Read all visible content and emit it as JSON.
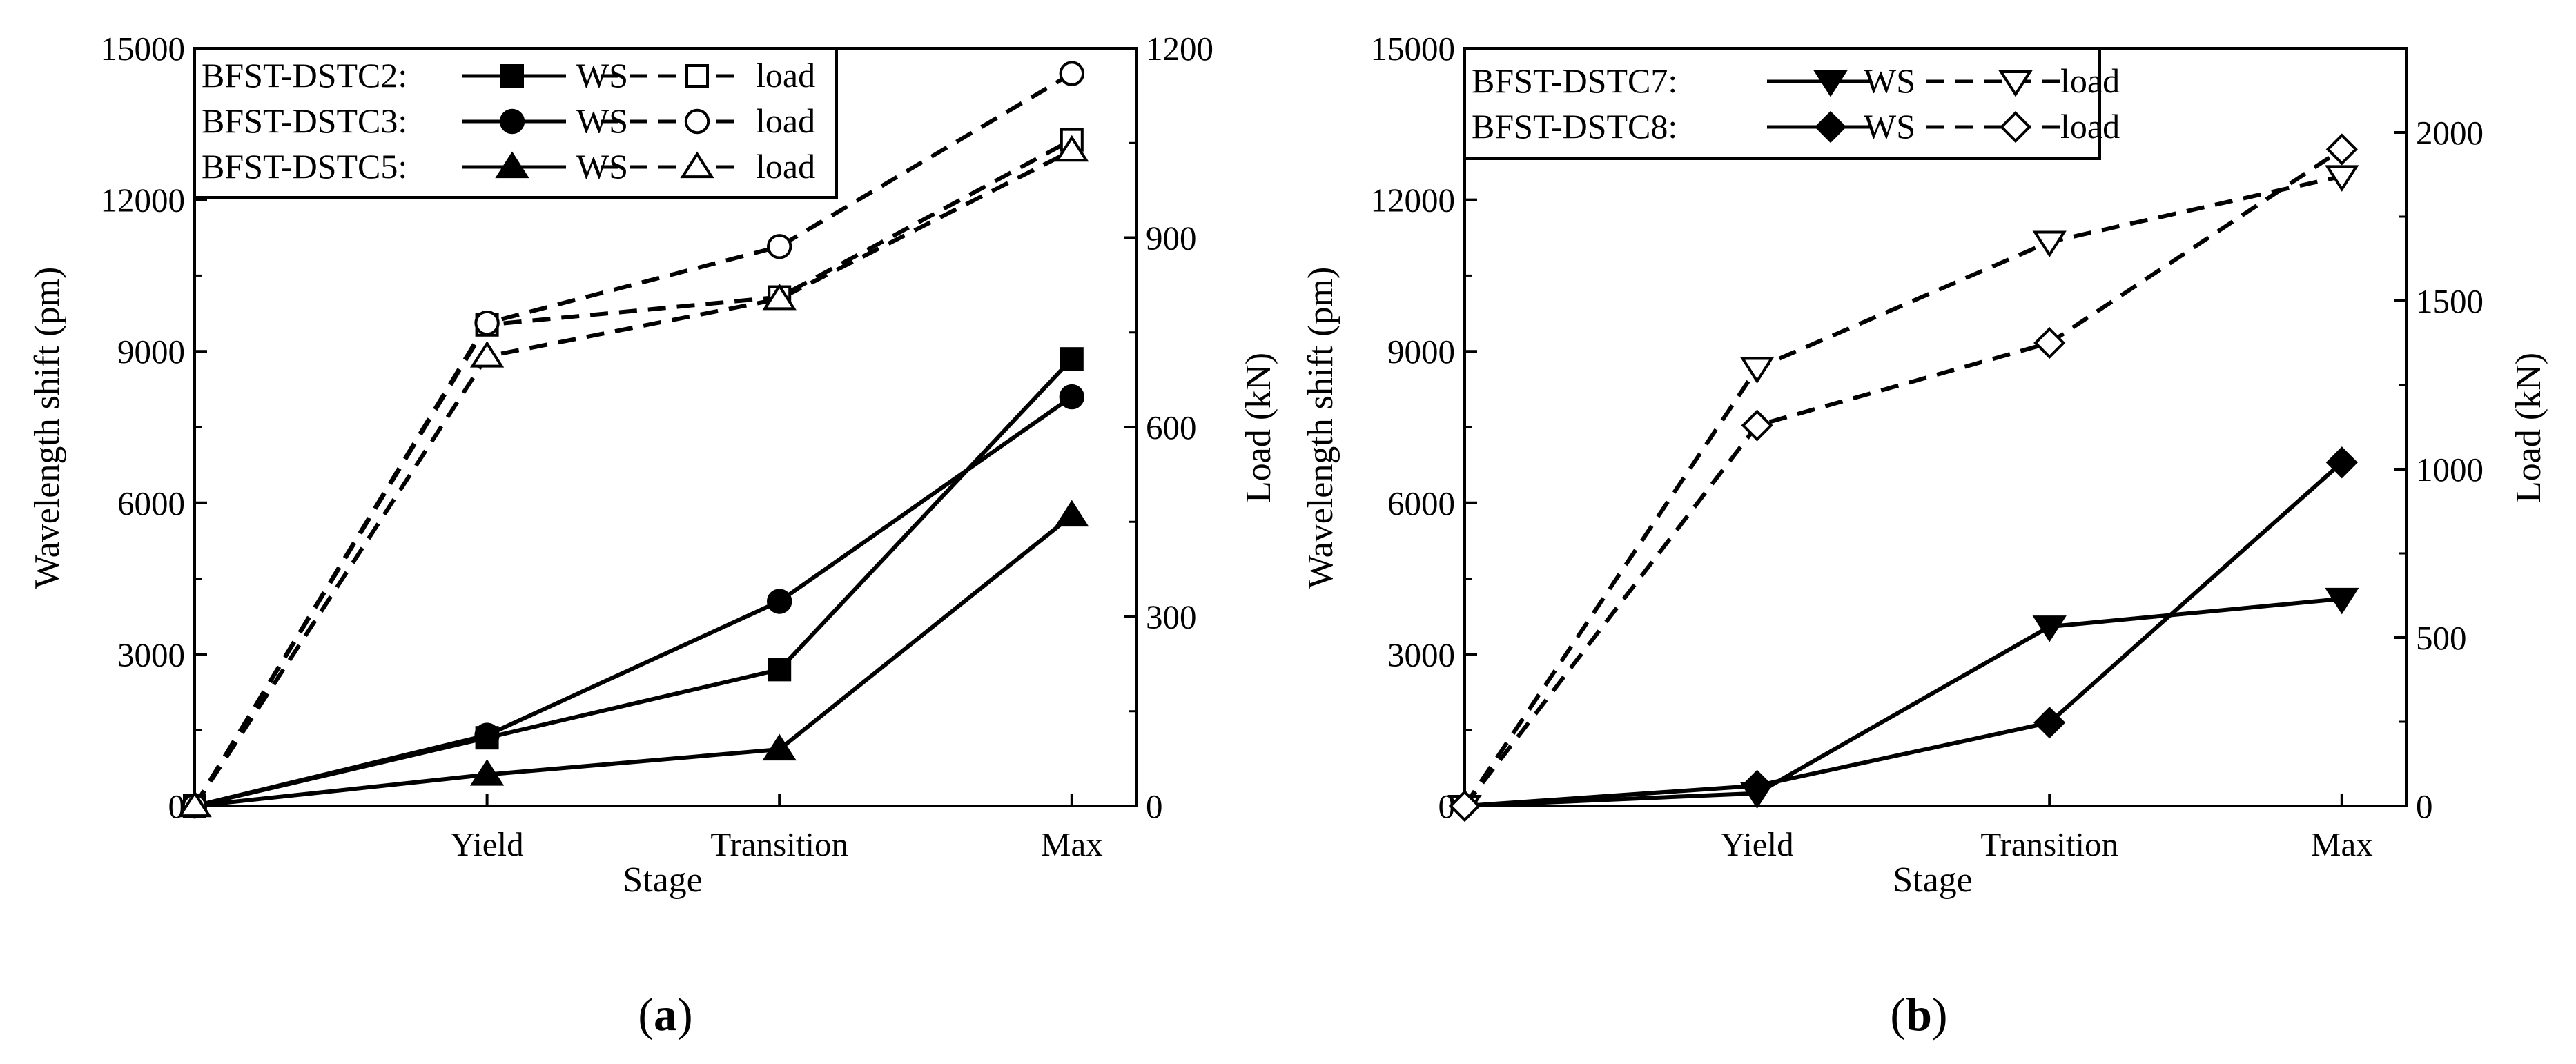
{
  "chart_data": [
    {
      "type": "line",
      "panel_label": "a",
      "xlabel": "Stage",
      "ylabel_left": "Wavelength shift (pm)",
      "ylabel_right": "Load (kN)",
      "categories": [
        "",
        "Yield",
        "Transition",
        "Max"
      ],
      "y_left": {
        "lim": [
          0,
          15000
        ],
        "ticks": [
          0,
          3000,
          6000,
          9000,
          12000,
          15000
        ]
      },
      "y_right": {
        "lim": [
          0,
          1200
        ],
        "ticks": [
          0,
          300,
          600,
          900,
          1200
        ]
      },
      "legend_position": "top-left",
      "legend": [
        {
          "name": "BFST-DSTC2:",
          "ws_label": "WS",
          "load_label": "load",
          "marker": "square"
        },
        {
          "name": "BFST-DSTC3:",
          "ws_label": "WS",
          "load_label": "load",
          "marker": "circle"
        },
        {
          "name": "BFST-DSTC5:",
          "ws_label": "WS",
          "load_label": "load",
          "marker": "triangle-up"
        }
      ],
      "series": [
        {
          "name": "BFST-DSTC2 WS",
          "axis": "left",
          "style": "solid",
          "marker": "square",
          "filled": true,
          "values": [
            0,
            1350,
            2700,
            8850
          ]
        },
        {
          "name": "BFST-DSTC3 WS",
          "axis": "left",
          "style": "solid",
          "marker": "circle",
          "filled": true,
          "values": [
            0,
            1400,
            4050,
            8100
          ]
        },
        {
          "name": "BFST-DSTC5 WS",
          "axis": "left",
          "style": "solid",
          "marker": "triangle-up",
          "filled": true,
          "values": [
            0,
            620,
            1120,
            5750
          ]
        },
        {
          "name": "BFST-DSTC2 load",
          "axis": "right",
          "style": "dashed",
          "marker": "square",
          "filled": false,
          "values": [
            0,
            762,
            806,
            1055
          ]
        },
        {
          "name": "BFST-DSTC3 load",
          "axis": "right",
          "style": "dashed",
          "marker": "circle",
          "filled": false,
          "values": [
            0,
            765,
            886,
            1160
          ]
        },
        {
          "name": "BFST-DSTC5 load",
          "axis": "right",
          "style": "dashed",
          "marker": "triangle-up",
          "filled": false,
          "values": [
            0,
            712,
            803,
            1038
          ]
        }
      ]
    },
    {
      "type": "line",
      "panel_label": "b",
      "xlabel": "Stage",
      "ylabel_left": "Wavelength shift (pm)",
      "ylabel_right": "Load (kN)",
      "categories": [
        "",
        "Yield",
        "Transition",
        "Max"
      ],
      "y_left": {
        "lim": [
          0,
          15000
        ],
        "ticks": [
          0,
          3000,
          6000,
          9000,
          12000,
          15000
        ]
      },
      "y_right": {
        "lim": [
          0,
          2250
        ],
        "ticks": [
          0,
          500,
          1000,
          1500,
          2000
        ]
      },
      "legend_position": "top-left",
      "legend": [
        {
          "name": "BFST-DSTC7:",
          "ws_label": "WS",
          "load_label": "load",
          "marker": "triangle-down"
        },
        {
          "name": "BFST-DSTC8:",
          "ws_label": "WS",
          "load_label": "load",
          "marker": "diamond"
        }
      ],
      "series": [
        {
          "name": "BFST-DSTC7 WS",
          "axis": "left",
          "style": "solid",
          "marker": "triangle-down",
          "filled": true,
          "values": [
            0,
            250,
            3550,
            4100
          ]
        },
        {
          "name": "BFST-DSTC8 WS",
          "axis": "left",
          "style": "solid",
          "marker": "diamond",
          "filled": true,
          "values": [
            0,
            400,
            1650,
            6800
          ]
        },
        {
          "name": "BFST-DSTC7 load",
          "axis": "right",
          "style": "dashed",
          "marker": "triangle-down",
          "filled": false,
          "values": [
            0,
            1300,
            1675,
            1870
          ]
        },
        {
          "name": "BFST-DSTC8 load",
          "axis": "right",
          "style": "dashed",
          "marker": "diamond",
          "filled": false,
          "values": [
            0,
            1130,
            1375,
            1950
          ]
        }
      ]
    }
  ]
}
